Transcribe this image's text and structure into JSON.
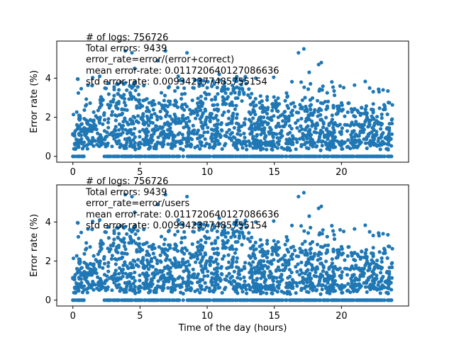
{
  "chart_data": [
    {
      "type": "scatter",
      "annotations": [
        "# of logs: 756726",
        "Total errors: 9439",
        "error_rate=error/(error+correct)",
        "mean error-rate: 0.011720640127086636",
        "std error-rate: 0.009342377485755154"
      ],
      "xlabel": "",
      "ylabel": "Error rate (%)",
      "xlim": [
        -1.2,
        25.0
      ],
      "ylim": [
        -0.3,
        5.9
      ],
      "xticks": [
        0,
        5,
        10,
        15,
        20
      ],
      "yticks": [
        0,
        2,
        4
      ],
      "color": "#1f77b4",
      "points_note": "",
      "outliers": [
        {
          "x": 3.9,
          "y": 5.4
        },
        {
          "x": 4.4,
          "y": 5.3
        },
        {
          "x": 6.9,
          "y": 5.4
        },
        {
          "x": 8.5,
          "y": 5.3
        },
        {
          "x": 17.2,
          "y": 5.5
        },
        {
          "x": 16.8,
          "y": 5.3
        },
        {
          "x": 18.5,
          "y": 4.8
        },
        {
          "x": 18.3,
          "y": 4.7
        },
        {
          "x": 17.6,
          "y": 4.3
        },
        {
          "x": 12.0,
          "y": 3.9
        },
        {
          "x": 2.0,
          "y": 4.1
        },
        {
          "x": 23.1,
          "y": 3.4
        },
        {
          "x": 22.8,
          "y": 3.3
        },
        {
          "x": 4.6,
          "y": 4.5
        },
        {
          "x": 6.3,
          "y": 4.9
        },
        {
          "x": 17.0,
          "y": 3.8
        },
        {
          "x": 10.9,
          "y": 4.2
        },
        {
          "x": 19.9,
          "y": 3.6
        }
      ]
    },
    {
      "type": "scatter",
      "annotations": [
        "# of logs: 756726",
        "Total errors: 9439",
        "error_rate=error/users",
        "mean error-rate: 0.011720640127086636",
        "std error-rate: 0.009342377485755154"
      ],
      "xlabel": "Time of the day (hours)",
      "ylabel": "Error rate (%)",
      "xlim": [
        -1.2,
        25.0
      ],
      "ylim": [
        -0.3,
        5.9
      ],
      "xticks": [
        0,
        5,
        10,
        15,
        20
      ],
      "yticks": [
        0,
        2,
        4
      ],
      "color": "#1f77b4",
      "outliers": [
        {
          "x": 3.9,
          "y": 5.4
        },
        {
          "x": 4.4,
          "y": 5.3
        },
        {
          "x": 6.9,
          "y": 5.4
        },
        {
          "x": 8.5,
          "y": 5.3
        },
        {
          "x": 17.2,
          "y": 5.5
        },
        {
          "x": 16.8,
          "y": 5.3
        },
        {
          "x": 18.5,
          "y": 4.8
        },
        {
          "x": 18.3,
          "y": 4.7
        },
        {
          "x": 17.6,
          "y": 4.3
        },
        {
          "x": 12.0,
          "y": 3.9
        },
        {
          "x": 2.0,
          "y": 4.1
        },
        {
          "x": 23.1,
          "y": 3.4
        },
        {
          "x": 22.8,
          "y": 3.3
        },
        {
          "x": 4.6,
          "y": 4.5
        },
        {
          "x": 6.3,
          "y": 4.9
        },
        {
          "x": 17.0,
          "y": 3.8
        },
        {
          "x": 10.9,
          "y": 4.2
        },
        {
          "x": 19.9,
          "y": 3.6
        }
      ]
    }
  ]
}
